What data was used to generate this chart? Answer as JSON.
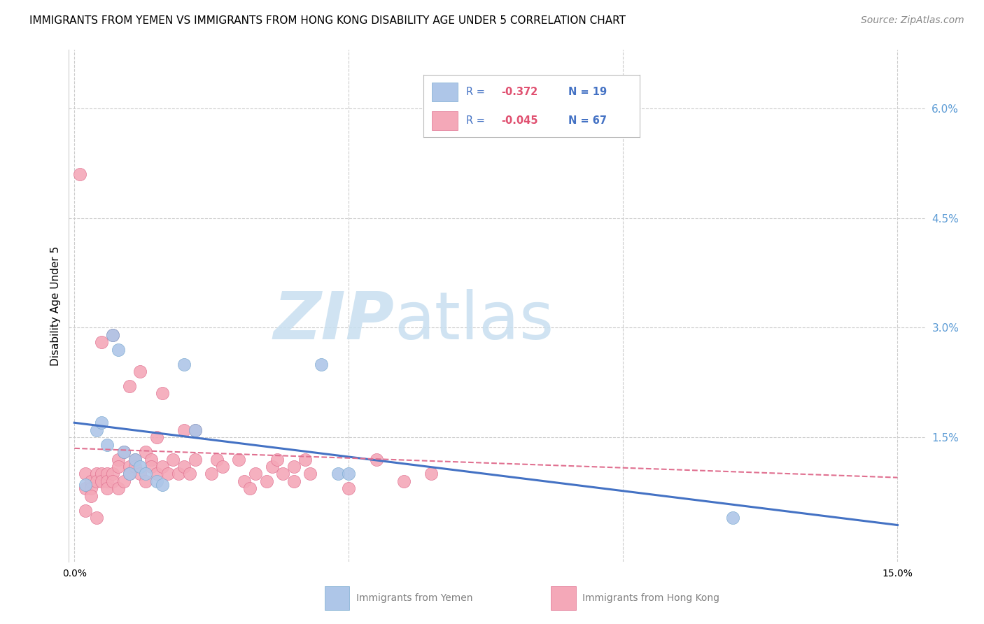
{
  "title": "IMMIGRANTS FROM YEMEN VS IMMIGRANTS FROM HONG KONG DISABILITY AGE UNDER 5 CORRELATION CHART",
  "source": "Source: ZipAtlas.com",
  "ylabel": "Disability Age Under 5",
  "right_ytick_labels": [
    "6.0%",
    "4.5%",
    "3.0%",
    "1.5%"
  ],
  "right_ytick_values": [
    0.06,
    0.045,
    0.03,
    0.015
  ],
  "xlim": [
    -0.001,
    0.155
  ],
  "ylim": [
    -0.002,
    0.068
  ],
  "xtick_labels": [
    "0.0%",
    "15.0%"
  ],
  "xtick_values": [
    0.0,
    0.15
  ],
  "watermark_zip": "ZIP",
  "watermark_atlas": "atlas",
  "watermark_color_zip": "#c8dff0",
  "watermark_color_atlas": "#c8dff0",
  "series_yemen": {
    "name": "Immigrants from Yemen",
    "color": "#aec6e8",
    "edge_color": "#7aaad0",
    "x": [
      0.002,
      0.004,
      0.005,
      0.006,
      0.007,
      0.008,
      0.009,
      0.01,
      0.011,
      0.012,
      0.013,
      0.015,
      0.016,
      0.02,
      0.022,
      0.045,
      0.048,
      0.05,
      0.12
    ],
    "y": [
      0.0085,
      0.016,
      0.017,
      0.014,
      0.029,
      0.027,
      0.013,
      0.01,
      0.012,
      0.011,
      0.01,
      0.009,
      0.0085,
      0.025,
      0.016,
      0.025,
      0.01,
      0.01,
      0.004
    ]
  },
  "series_hk": {
    "name": "Immigrants from Hong Kong",
    "color": "#f4a8b8",
    "edge_color": "#e07090",
    "x": [
      0.001,
      0.002,
      0.002,
      0.003,
      0.003,
      0.003,
      0.004,
      0.004,
      0.005,
      0.005,
      0.005,
      0.006,
      0.006,
      0.006,
      0.007,
      0.007,
      0.007,
      0.008,
      0.008,
      0.008,
      0.009,
      0.009,
      0.01,
      0.01,
      0.01,
      0.011,
      0.011,
      0.012,
      0.012,
      0.013,
      0.013,
      0.014,
      0.014,
      0.015,
      0.015,
      0.016,
      0.016,
      0.017,
      0.018,
      0.019,
      0.02,
      0.02,
      0.021,
      0.022,
      0.022,
      0.025,
      0.026,
      0.027,
      0.03,
      0.031,
      0.032,
      0.033,
      0.035,
      0.036,
      0.037,
      0.038,
      0.04,
      0.04,
      0.042,
      0.043,
      0.05,
      0.055,
      0.06,
      0.065,
      0.002,
      0.004
    ],
    "y": [
      0.051,
      0.01,
      0.008,
      0.009,
      0.008,
      0.007,
      0.01,
      0.009,
      0.01,
      0.009,
      0.028,
      0.01,
      0.009,
      0.008,
      0.029,
      0.01,
      0.009,
      0.008,
      0.012,
      0.011,
      0.009,
      0.013,
      0.022,
      0.011,
      0.01,
      0.012,
      0.011,
      0.024,
      0.01,
      0.009,
      0.013,
      0.012,
      0.011,
      0.015,
      0.01,
      0.021,
      0.011,
      0.01,
      0.012,
      0.01,
      0.016,
      0.011,
      0.01,
      0.016,
      0.012,
      0.01,
      0.012,
      0.011,
      0.012,
      0.009,
      0.008,
      0.01,
      0.009,
      0.011,
      0.012,
      0.01,
      0.009,
      0.011,
      0.012,
      0.01,
      0.008,
      0.012,
      0.009,
      0.01,
      0.005,
      0.004
    ]
  },
  "trend_yemen": {
    "x_start": 0.0,
    "x_end": 0.15,
    "y_start": 0.017,
    "y_end": 0.003,
    "color": "#4472c4",
    "linewidth": 2.2
  },
  "trend_hk": {
    "x_start": 0.0,
    "x_end": 0.15,
    "y_start": 0.0135,
    "y_end": 0.0095,
    "color": "#e07090",
    "linewidth": 1.5
  },
  "grid_color": "#cccccc",
  "background_color": "#ffffff",
  "title_fontsize": 11,
  "source_fontsize": 10,
  "axis_color": "#5b9bd5",
  "legend_text_color": "#4472c4",
  "legend_R_color": "#e05070",
  "bottom_legend_text_color": "#808080"
}
